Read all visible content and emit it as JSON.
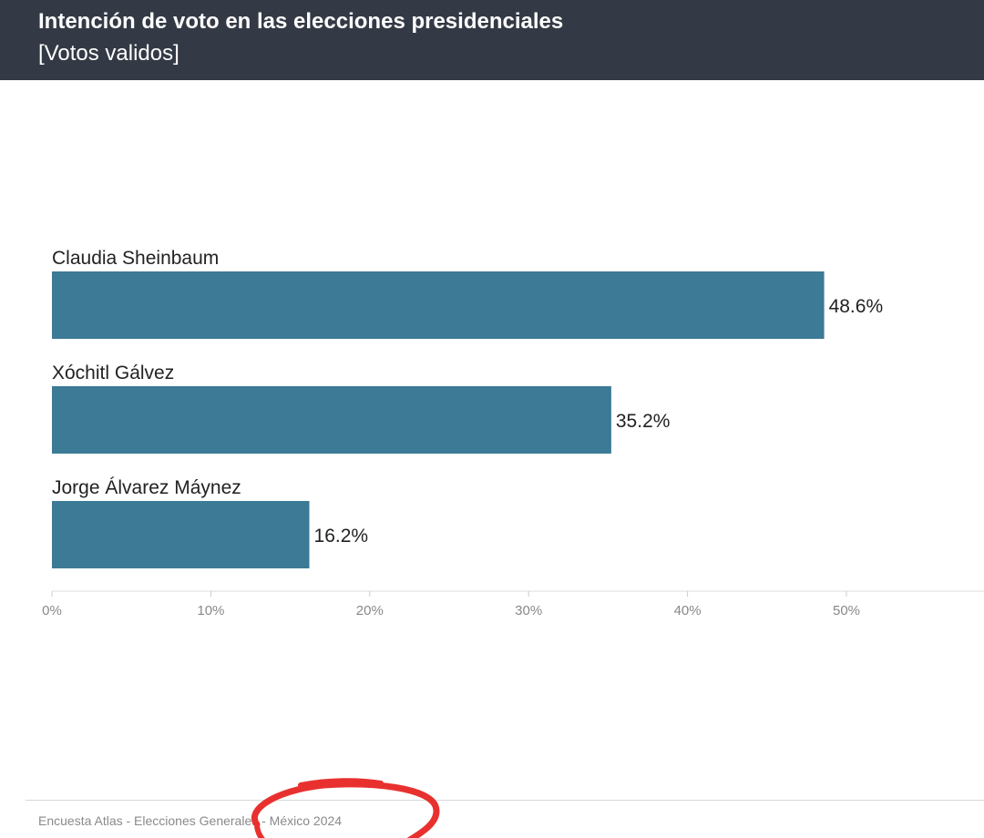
{
  "header": {
    "title": "Intención de voto en las elecciones presidenciales",
    "subtitle": "[Votos validos]",
    "background_color": "#343a45"
  },
  "chart_data": {
    "type": "bar",
    "orientation": "horizontal",
    "title": "Intención de voto en las elecciones presidenciales",
    "subtitle": "[Votos validos]",
    "categories": [
      "Claudia Sheinbaum",
      "Xóchitl Gálvez",
      "Jorge Álvarez Máynez"
    ],
    "values": [
      48.6,
      35.2,
      16.2
    ],
    "value_labels": [
      "48.6%",
      "35.2%",
      "16.2%"
    ],
    "xlim": [
      0,
      50
    ],
    "xticks": [
      0,
      10,
      20,
      30,
      40,
      50
    ],
    "xtick_labels": [
      "0%",
      "10%",
      "20%",
      "30%",
      "40%",
      "50%"
    ],
    "bar_color": "#3c7a96",
    "grid": false,
    "legend": "none"
  },
  "footer": {
    "source": "Encuesta Atlas - Elecciones Generales - México 2024"
  },
  "annotation": {
    "type": "hand-drawn red circle",
    "color": "#e8312f"
  }
}
